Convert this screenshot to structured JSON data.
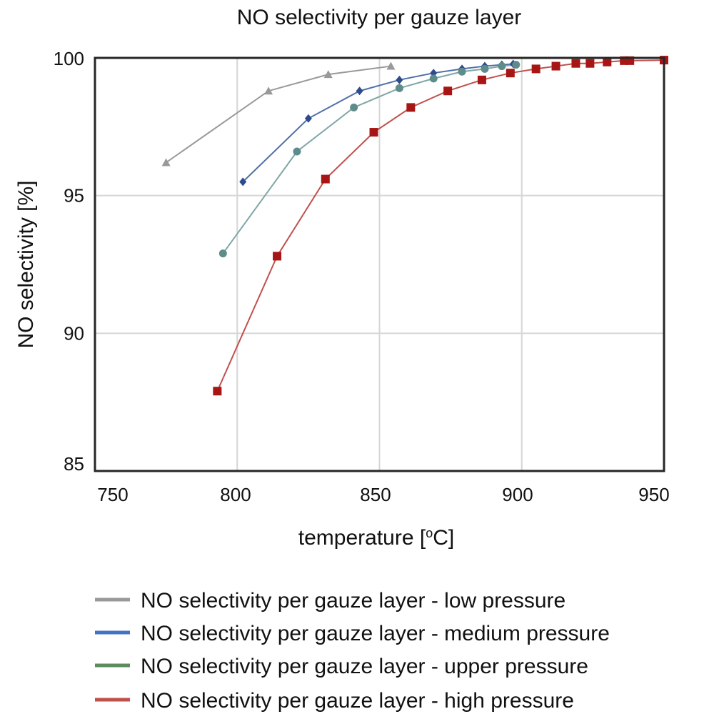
{
  "chart_data": {
    "type": "line",
    "title": "NO selectivity per gauze layer",
    "xlabel": "temperature [°C]",
    "xlabel_parts": {
      "main": "temperature [",
      "superscript": "o",
      "tail": "C]"
    },
    "ylabel": "NO selectivity [%]",
    "xlim": [
      750,
      950
    ],
    "ylim": [
      85,
      100
    ],
    "xticks": [
      "750",
      "800",
      "850",
      "900",
      "950"
    ],
    "yticks": [
      "85",
      "90",
      "95",
      "100"
    ],
    "grid": true,
    "legend_position": "bottom",
    "series": [
      {
        "name": "NO selectivity per gauze layer - low pressure",
        "color": "#999999",
        "line_color": "#999999",
        "marker": "triangle",
        "x": [
          775,
          811,
          832,
          854
        ],
        "y": [
          96.2,
          98.8,
          99.4,
          99.7
        ]
      },
      {
        "name": "NO selectivity per gauze layer - medium pressure",
        "color": "#4472C4",
        "line_color": "#4F6EA8",
        "marker_color": "#2E4B8C",
        "marker": "diamond",
        "x": [
          802,
          825,
          843,
          857,
          869,
          879,
          887,
          893,
          897
        ],
        "y": [
          95.5,
          97.8,
          98.8,
          99.2,
          99.45,
          99.6,
          99.7,
          99.75,
          99.78
        ]
      },
      {
        "name": "NO selectivity per gauze layer - upper pressure",
        "color": "#5B8C5A",
        "line_color": "#7EA6A6",
        "marker_color": "#5E8C8A",
        "marker": "circle",
        "x": [
          795,
          821,
          841,
          857,
          869,
          879,
          887,
          893,
          898
        ],
        "y": [
          92.9,
          96.6,
          98.2,
          98.9,
          99.25,
          99.5,
          99.6,
          99.7,
          99.75
        ]
      },
      {
        "name": "NO selectivity per gauze layer - high pressure",
        "color": "#C0504D",
        "line_color": "#C0504D",
        "marker_color": "#A81515",
        "marker": "square",
        "x": [
          793,
          814,
          831,
          848,
          861,
          874,
          886,
          896,
          905,
          912,
          919,
          924,
          930,
          936,
          938,
          950
        ],
        "y": [
          87.9,
          92.8,
          95.6,
          97.3,
          98.2,
          98.8,
          99.2,
          99.45,
          99.6,
          99.7,
          99.8,
          99.8,
          99.85,
          99.9,
          99.9,
          99.92
        ]
      }
    ]
  }
}
